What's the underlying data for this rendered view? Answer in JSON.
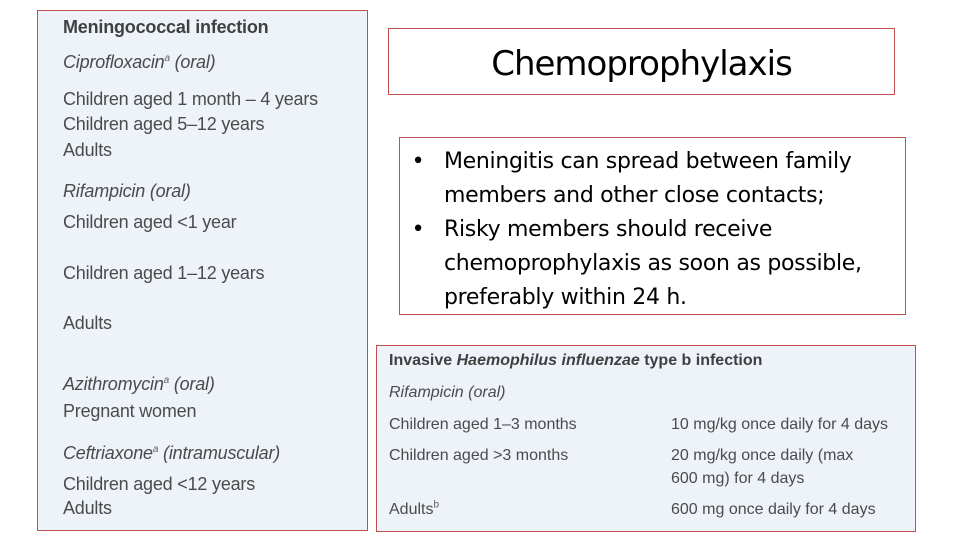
{
  "left_table": {
    "heading": "Meningococcal infection",
    "drugs": [
      {
        "name": "Ciprofloxacin",
        "sup": "a",
        "route": "(oral)",
        "groups": [
          "Children aged 1 month – 4 years",
          "Children aged 5–12 years",
          "Adults"
        ]
      },
      {
        "name": "Rifampicin (oral)",
        "sup": "",
        "route": "",
        "groups": [
          "Children aged <1 year",
          "Children aged 1–12 years",
          "Adults"
        ]
      },
      {
        "name": "Azithromycin",
        "sup": "a",
        "route": "(oral)",
        "groups": [
          "Pregnant women"
        ]
      },
      {
        "name": "Ceftriaxone",
        "sup": "a",
        "route": "(intramuscular)",
        "groups": [
          "Children aged <12 years",
          "Adults"
        ]
      }
    ]
  },
  "title": "Chemoprophylaxis",
  "bullets": [
    "Meningitis can spread between family members and other close contacts;",
    "Risky members should receive chemoprophylaxis as soon as possible, preferably within 24 h."
  ],
  "bullet_symbol": "•",
  "right_table": {
    "heading_prefix": "Invasive ",
    "heading_italic": "Haemophilus influenzae",
    "heading_suffix": " type b infection",
    "drug": "Rifampicin (oral)",
    "rows": [
      {
        "group": "Children aged 1–3 months",
        "group_sup": "",
        "dose_line1": "10 mg/kg once daily for 4 days",
        "dose_line2": ""
      },
      {
        "group": "Children aged >3 months",
        "group_sup": "",
        "dose_line1": "20 mg/kg once daily (max",
        "dose_line2": "600 mg) for 4 days"
      },
      {
        "group": "Adults",
        "group_sup": "b",
        "dose_line1": "600 mg once daily for 4 days",
        "dose_line2": ""
      }
    ]
  },
  "colors": {
    "border": "#c0504d",
    "panel_bg": "#eef2f9",
    "table_text": "#4b4b4b"
  }
}
